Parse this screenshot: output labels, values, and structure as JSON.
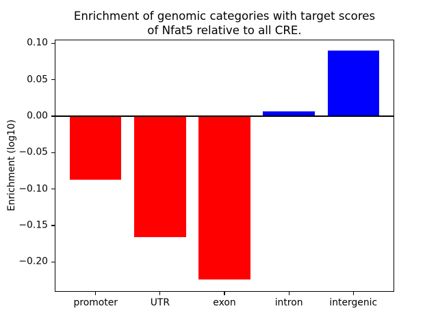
{
  "figure": {
    "background": "#ffffff",
    "title_lines": [
      "Enrichment of genomic categories with target scores",
      "of Nfat5 relative to all CRE."
    ]
  },
  "chart_data": {
    "type": "bar",
    "title": "Enrichment of genomic categories with target scores\nof Nfat5 relative to all CRE.",
    "categories": [
      "promoter",
      "UTR",
      "exon",
      "intron",
      "intergenic"
    ],
    "values": [
      -0.087,
      -0.166,
      -0.224,
      0.007,
      0.09
    ],
    "xlabel": "",
    "ylabel": "Enrichment (log10)",
    "ylim": [
      -0.241,
      0.105
    ],
    "xlim": [
      -0.635,
      4.635
    ],
    "yticks": [
      {
        "label": "0.10",
        "value": 0.1
      },
      {
        "label": "0.05",
        "value": 0.05
      },
      {
        "label": "0.00",
        "value": 0.0
      },
      {
        "label": "−0.05",
        "value": -0.05
      },
      {
        "label": "−0.10",
        "value": -0.1
      },
      {
        "label": "−0.15",
        "value": -0.15
      },
      {
        "label": "−0.20",
        "value": -0.2
      }
    ],
    "bar_width": 0.8,
    "colors": {
      "positive": "#0000ff",
      "negative": "#ff0000",
      "zero_line": "#000000",
      "spine": "#000000",
      "text": "#000000"
    },
    "zero_line_value": 0,
    "grid": false,
    "legend": false
  }
}
